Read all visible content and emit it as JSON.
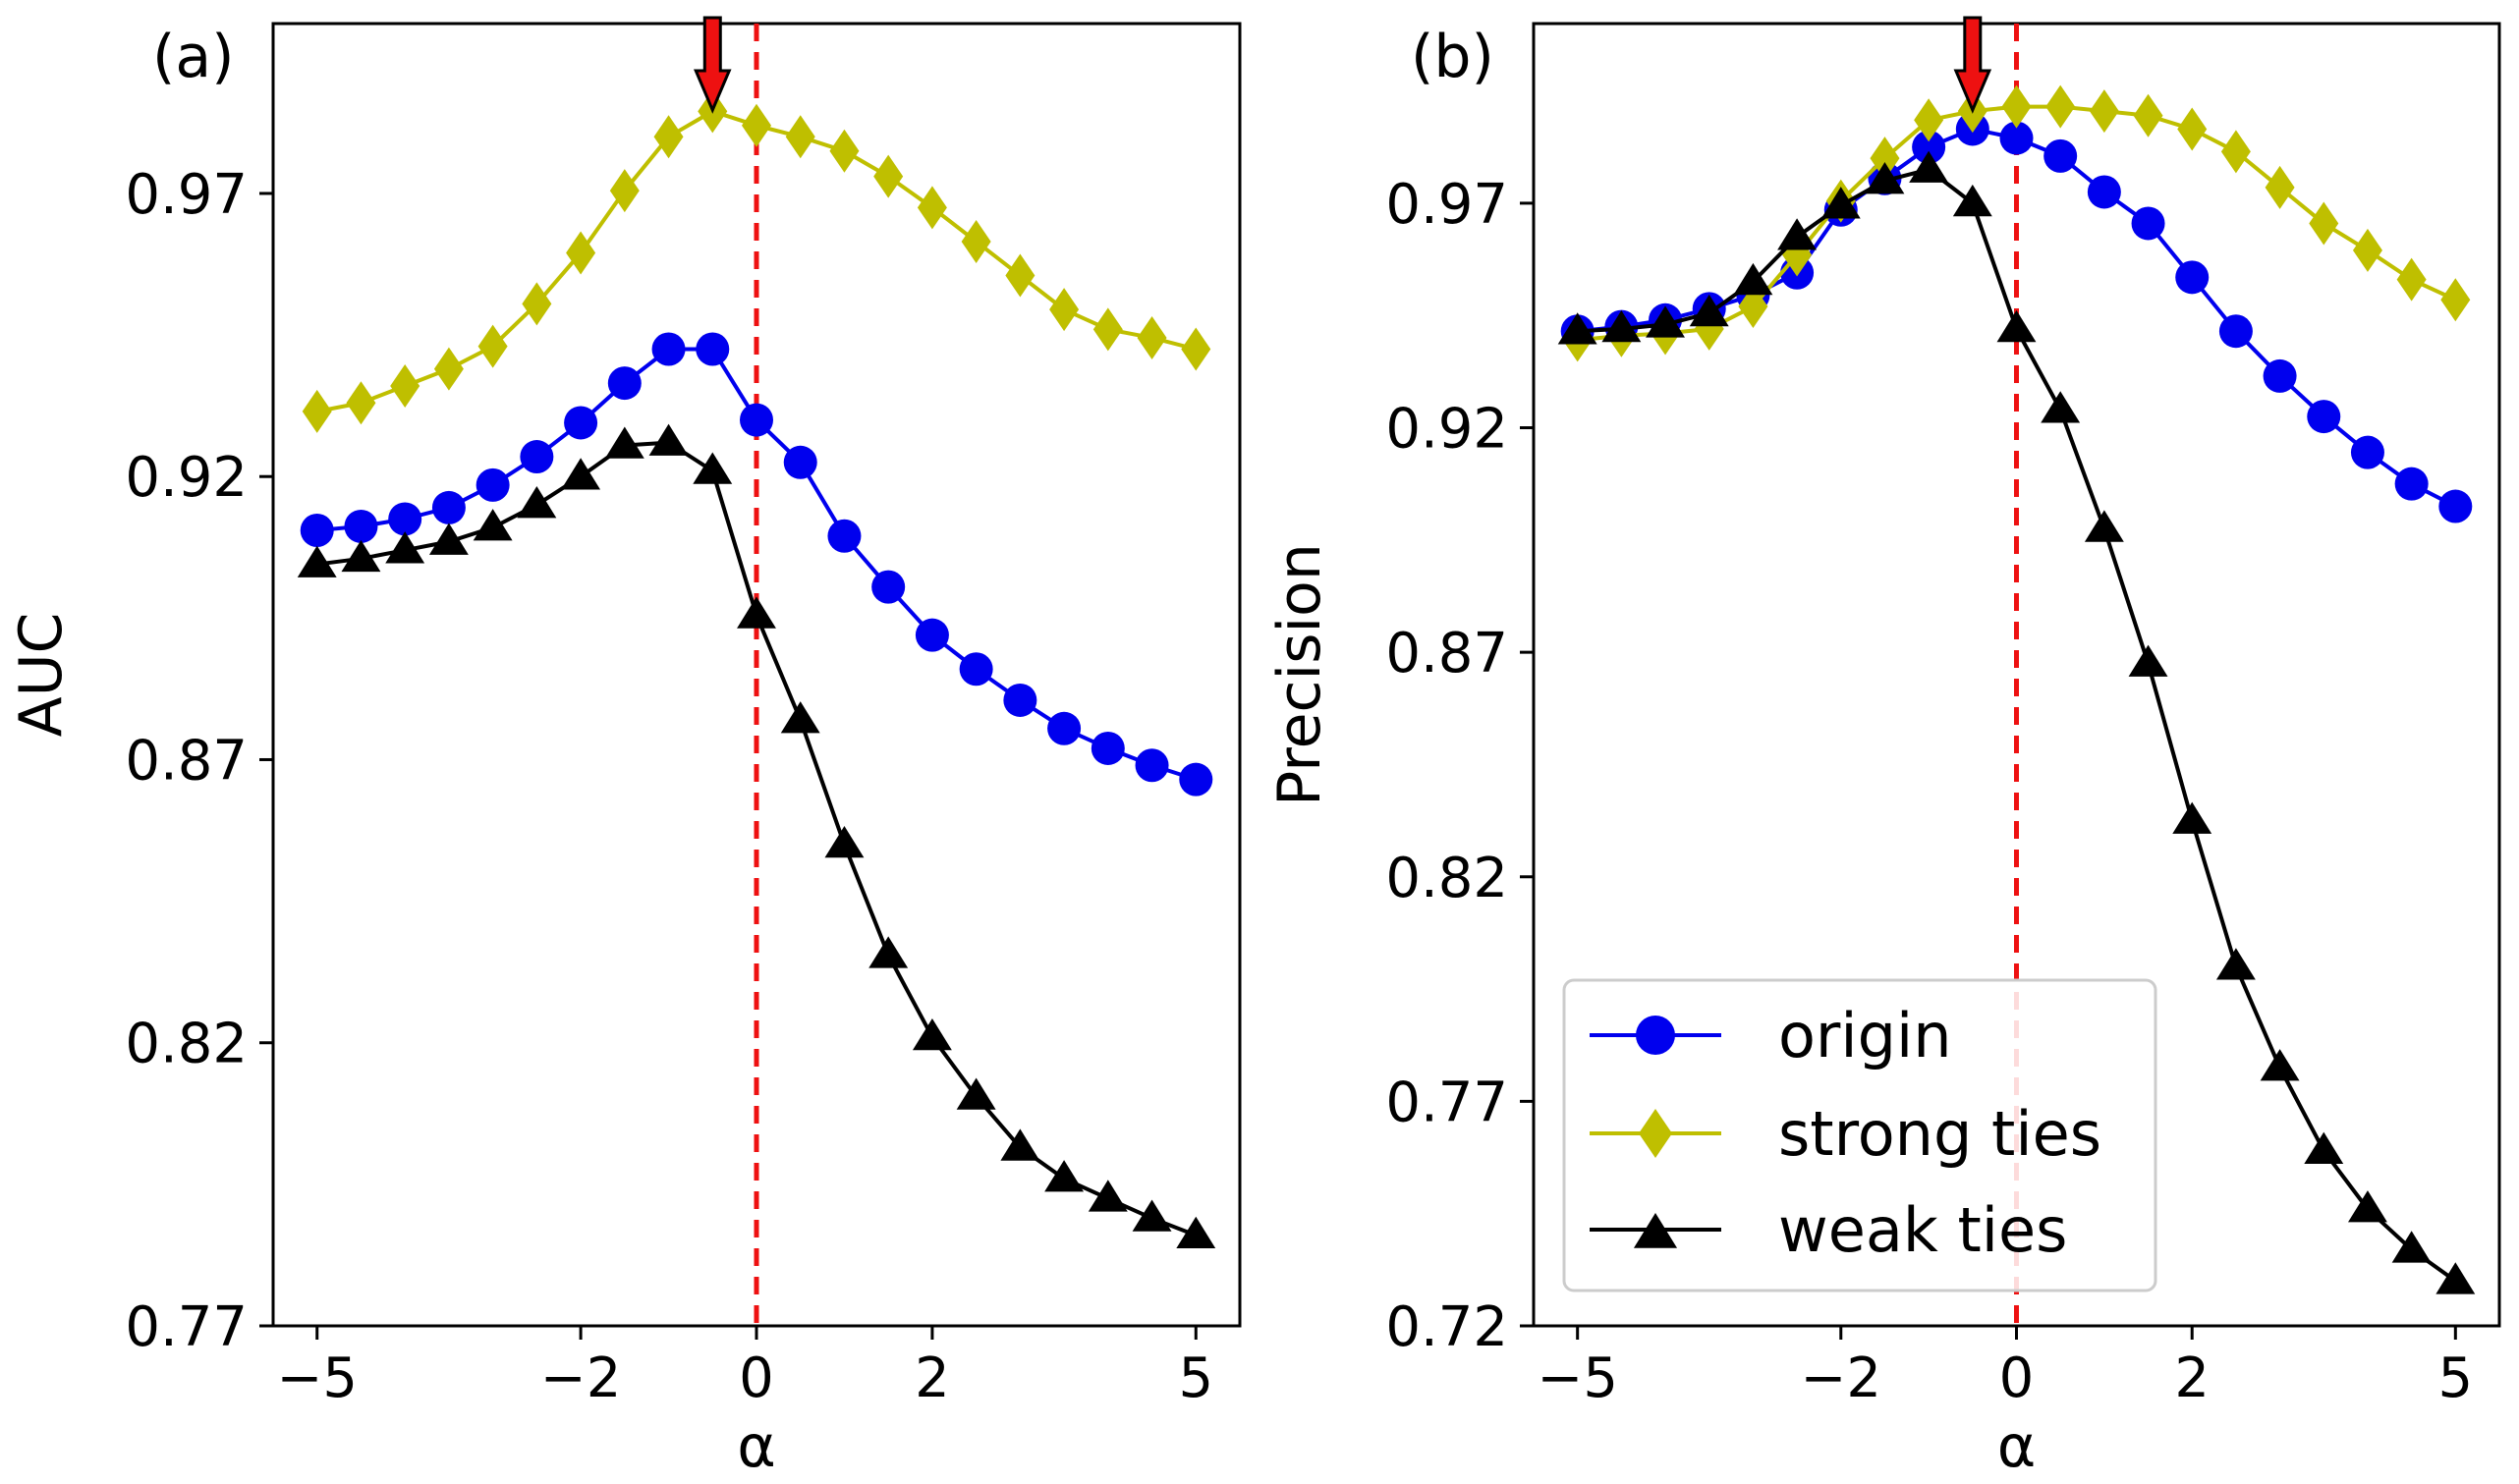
{
  "colors": {
    "origin": "#0000ee",
    "strong": "#bfbf00",
    "weak": "#000000",
    "ref_line": "#ee1111",
    "arrow": "#ee1111"
  },
  "chart_data": [
    {
      "type": "line",
      "panel_label": "(a)",
      "xlabel": "α",
      "ylabel": "AUC",
      "xlim": [
        -5.5,
        5.5
      ],
      "ylim": [
        0.77,
        1.0
      ],
      "xticks": [
        -5,
        -2,
        0,
        2,
        5
      ],
      "xtick_labels": [
        "−5",
        "−2",
        "0",
        "2",
        "5"
      ],
      "yticks": [
        0.77,
        0.82,
        0.87,
        0.92,
        0.97
      ],
      "ytick_labels": [
        "0.77",
        "0.82",
        "0.87",
        "0.92",
        "0.97"
      ],
      "vline_x": 0,
      "arrow_x": -0.5,
      "x": [
        -5.0,
        -4.5,
        -4.0,
        -3.5,
        -3.0,
        -2.5,
        -2.0,
        -1.5,
        -1.0,
        -0.5,
        0.0,
        0.5,
        1.0,
        1.5,
        2.0,
        2.5,
        3.0,
        3.5,
        4.0,
        4.5,
        5.0
      ],
      "series": [
        {
          "name": "origin",
          "marker": "circle",
          "values": [
            0.9105,
            0.9112,
            0.9125,
            0.9145,
            0.9185,
            0.9235,
            0.9295,
            0.9365,
            0.9425,
            0.9425,
            0.93,
            0.9225,
            0.9095,
            0.9005,
            0.892,
            0.886,
            0.8805,
            0.8755,
            0.872,
            0.869,
            0.8665
          ]
        },
        {
          "name": "strong ties",
          "marker": "diamond",
          "values": [
            0.9315,
            0.933,
            0.936,
            0.939,
            0.943,
            0.9505,
            0.9595,
            0.9705,
            0.98,
            0.9845,
            0.982,
            0.98,
            0.9775,
            0.973,
            0.9675,
            0.9615,
            0.9555,
            0.9495,
            0.946,
            0.9445,
            0.9425
          ]
        },
        {
          "name": "weak ties",
          "marker": "triangle",
          "values": [
            0.9045,
            0.9055,
            0.907,
            0.9085,
            0.911,
            0.915,
            0.92,
            0.9255,
            0.926,
            0.921,
            0.8955,
            0.877,
            0.855,
            0.8355,
            0.821,
            0.8105,
            0.8015,
            0.796,
            0.7925,
            0.789,
            0.786
          ]
        }
      ]
    },
    {
      "type": "line",
      "panel_label": "(b)",
      "xlabel": "α",
      "ylabel": "Precision",
      "xlim": [
        -5.5,
        5.5
      ],
      "ylim": [
        0.72,
        1.01
      ],
      "xticks": [
        -5,
        -2,
        0,
        2,
        5
      ],
      "xtick_labels": [
        "−5",
        "−2",
        "0",
        "2",
        "5"
      ],
      "yticks": [
        0.72,
        0.77,
        0.82,
        0.87,
        0.92,
        0.97
      ],
      "ytick_labels": [
        "0.72",
        "0.77",
        "0.82",
        "0.87",
        "0.92",
        "0.97"
      ],
      "vline_x": 0,
      "arrow_x": -0.5,
      "legend_position": "lower-right",
      "x": [
        -5.0,
        -4.5,
        -4.0,
        -3.5,
        -3.0,
        -2.5,
        -2.0,
        -1.5,
        -1.0,
        -0.5,
        0.0,
        0.5,
        1.0,
        1.5,
        2.0,
        2.5,
        3.0,
        3.5,
        4.0,
        4.5,
        5.0
      ],
      "series": [
        {
          "name": "origin",
          "marker": "circle",
          "values": [
            0.9415,
            0.9425,
            0.944,
            0.9465,
            0.9495,
            0.9545,
            0.9685,
            0.9755,
            0.9825,
            0.9865,
            0.9845,
            0.9805,
            0.9725,
            0.9655,
            0.9535,
            0.9415,
            0.9315,
            0.9225,
            0.9145,
            0.9075,
            0.9025
          ]
        },
        {
          "name": "strong ties",
          "marker": "diamond",
          "values": [
            0.9395,
            0.9405,
            0.941,
            0.942,
            0.947,
            0.9585,
            0.9705,
            0.98,
            0.9885,
            0.9905,
            0.9915,
            0.9915,
            0.9905,
            0.9895,
            0.9865,
            0.9815,
            0.9735,
            0.9655,
            0.9595,
            0.953,
            0.9485
          ]
        },
        {
          "name": "weak ties",
          "marker": "triangle",
          "values": [
            0.9415,
            0.942,
            0.943,
            0.9455,
            0.9525,
            0.9625,
            0.9695,
            0.975,
            0.9775,
            0.97,
            0.942,
            0.924,
            0.8975,
            0.8675,
            0.8325,
            0.8,
            0.7775,
            0.759,
            0.746,
            0.737,
            0.73
          ]
        }
      ]
    }
  ]
}
